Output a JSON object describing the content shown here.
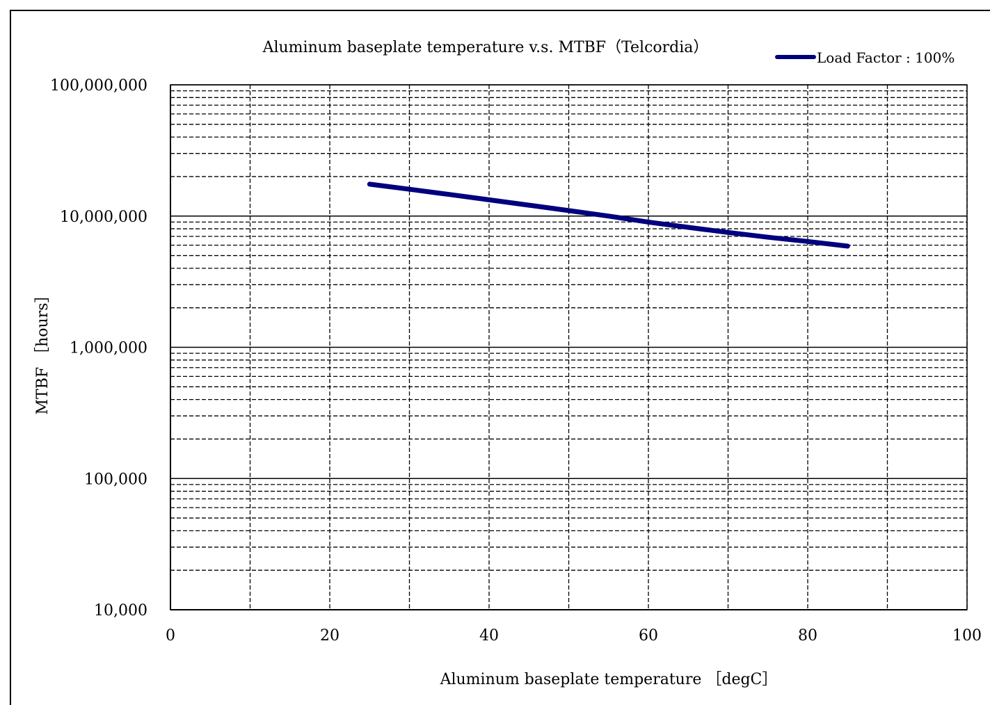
{
  "chart_data": {
    "type": "line",
    "title": "Aluminum baseplate temperature  v.s.  MTBF（Telcordia）",
    "xlabel": "Aluminum baseplate temperature ［degC］",
    "ylabel": "MTBF ［hours］",
    "xlim": [
      0,
      100
    ],
    "ylim": [
      10000,
      100000000
    ],
    "yscale": "log",
    "x_ticks": [
      0,
      20,
      40,
      60,
      80,
      100
    ],
    "x_tick_labels": [
      "0",
      "20",
      "40",
      "60",
      "80",
      "100"
    ],
    "y_ticks": [
      10000,
      100000,
      1000000,
      10000000,
      100000000
    ],
    "y_tick_labels": [
      "10,000",
      "100,000",
      "1,000,000",
      "10,000,000",
      "100,000,000"
    ],
    "x_minor_gridlines": [
      10,
      30,
      50,
      70,
      90
    ],
    "grid": "on",
    "legend_position": "top-right",
    "series": [
      {
        "name": "Load Factor : 100%",
        "color": "#00007f",
        "x": [
          25,
          30,
          35,
          40,
          45,
          50,
          55,
          60,
          65,
          70,
          75,
          80,
          85
        ],
        "y": [
          17500000,
          16000000,
          14600000,
          13300000,
          12100000,
          11000000,
          10000000,
          9000000,
          8200000,
          7500000,
          6900000,
          6400000,
          5900000
        ]
      }
    ]
  }
}
